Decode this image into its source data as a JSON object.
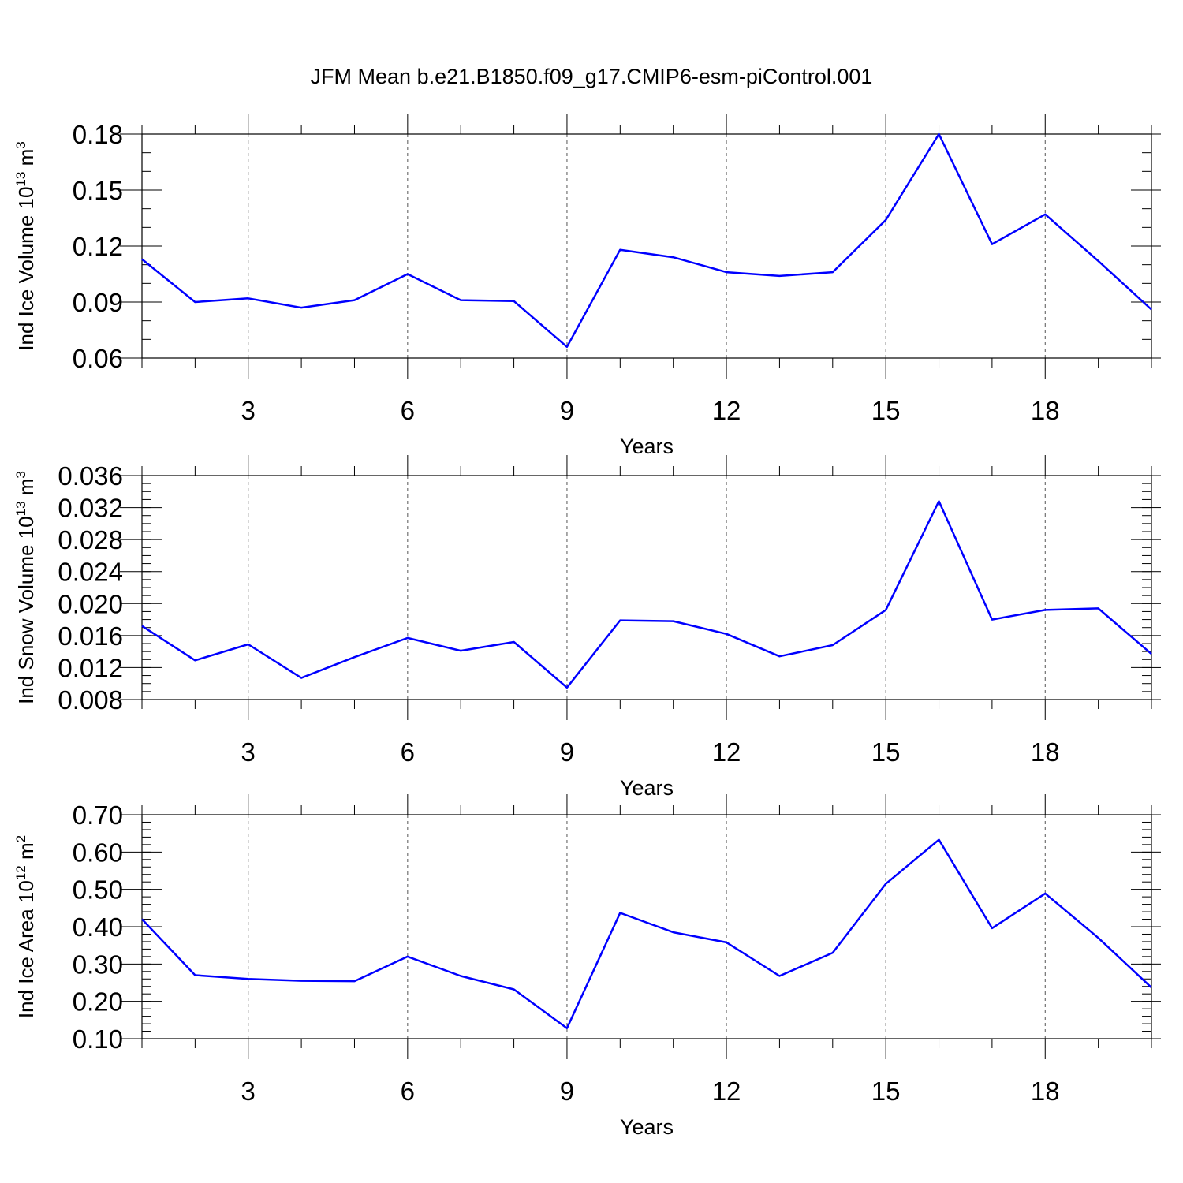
{
  "title": "JFM Mean b.e21.B1850.f09_g17.CMIP6-esm-piControl.001",
  "colors": {
    "series": "#0000ff",
    "axis": "#000000",
    "grid": "#555555"
  },
  "chart_data": [
    {
      "type": "line",
      "id": "ice-volume",
      "ylabel_main": "Ind Ice Volume 10",
      "ylabel_exp": "13",
      "ylabel_unit": " m",
      "ylabel_unit_exp": "3",
      "xlabel": "Years",
      "x": [
        1,
        2,
        3,
        4,
        5,
        6,
        7,
        8,
        9,
        10,
        11,
        12,
        13,
        14,
        15,
        16,
        17,
        18,
        19,
        20
      ],
      "values": [
        0.113,
        0.09,
        0.092,
        0.087,
        0.091,
        0.105,
        0.091,
        0.0905,
        0.066,
        0.118,
        0.114,
        0.106,
        0.104,
        0.106,
        0.134,
        0.18,
        0.121,
        0.137,
        0.112,
        0.086
      ],
      "xlim": [
        1,
        20
      ],
      "ylim": [
        0.06,
        0.18
      ],
      "xticks": [
        3,
        6,
        9,
        12,
        15,
        18
      ],
      "yticks": [
        0.06,
        0.09,
        0.12,
        0.15,
        0.18
      ],
      "ytick_labels": [
        "0.06",
        "0.09",
        "0.12",
        "0.15",
        "0.18"
      ],
      "yminor_step": 0.01
    },
    {
      "type": "line",
      "id": "snow-volume",
      "ylabel_main": "Ind Snow Volume 10",
      "ylabel_exp": "13",
      "ylabel_unit": " m",
      "ylabel_unit_exp": "3",
      "xlabel": "Years",
      "x": [
        1,
        2,
        3,
        4,
        5,
        6,
        7,
        8,
        9,
        10,
        11,
        12,
        13,
        14,
        15,
        16,
        17,
        18,
        19,
        20
      ],
      "values": [
        0.0172,
        0.0129,
        0.0149,
        0.0107,
        0.0133,
        0.0157,
        0.0141,
        0.0152,
        0.0095,
        0.0179,
        0.0178,
        0.0162,
        0.0134,
        0.0148,
        0.0192,
        0.0328,
        0.018,
        0.0192,
        0.0194,
        0.0137
      ],
      "xlim": [
        1,
        20
      ],
      "ylim": [
        0.008,
        0.036
      ],
      "xticks": [
        3,
        6,
        9,
        12,
        15,
        18
      ],
      "yticks": [
        0.008,
        0.012,
        0.016,
        0.02,
        0.024,
        0.028,
        0.032,
        0.036
      ],
      "ytick_labels": [
        "0.008",
        "0.012",
        "0.016",
        "0.020",
        "0.024",
        "0.028",
        "0.032",
        "0.036"
      ],
      "yminor_step": 0.001
    },
    {
      "type": "line",
      "id": "ice-area",
      "ylabel_main": "Ind Ice Area 10",
      "ylabel_exp": "12",
      "ylabel_unit": " m",
      "ylabel_unit_exp": "2",
      "xlabel": "Years",
      "x": [
        1,
        2,
        3,
        4,
        5,
        6,
        7,
        8,
        9,
        10,
        11,
        12,
        13,
        14,
        15,
        16,
        17,
        18,
        19,
        20
      ],
      "values": [
        0.42,
        0.27,
        0.26,
        0.255,
        0.254,
        0.32,
        0.268,
        0.232,
        0.128,
        0.437,
        0.385,
        0.358,
        0.268,
        0.33,
        0.515,
        0.633,
        0.396,
        0.489,
        0.37,
        0.237
      ],
      "xlim": [
        1,
        20
      ],
      "ylim": [
        0.1,
        0.7
      ],
      "xticks": [
        3,
        6,
        9,
        12,
        15,
        18
      ],
      "yticks": [
        0.1,
        0.2,
        0.3,
        0.4,
        0.5,
        0.6,
        0.7
      ],
      "ytick_labels": [
        "0.10",
        "0.20",
        "0.30",
        "0.40",
        "0.50",
        "0.60",
        "0.70"
      ],
      "yminor_step": 0.02
    }
  ]
}
